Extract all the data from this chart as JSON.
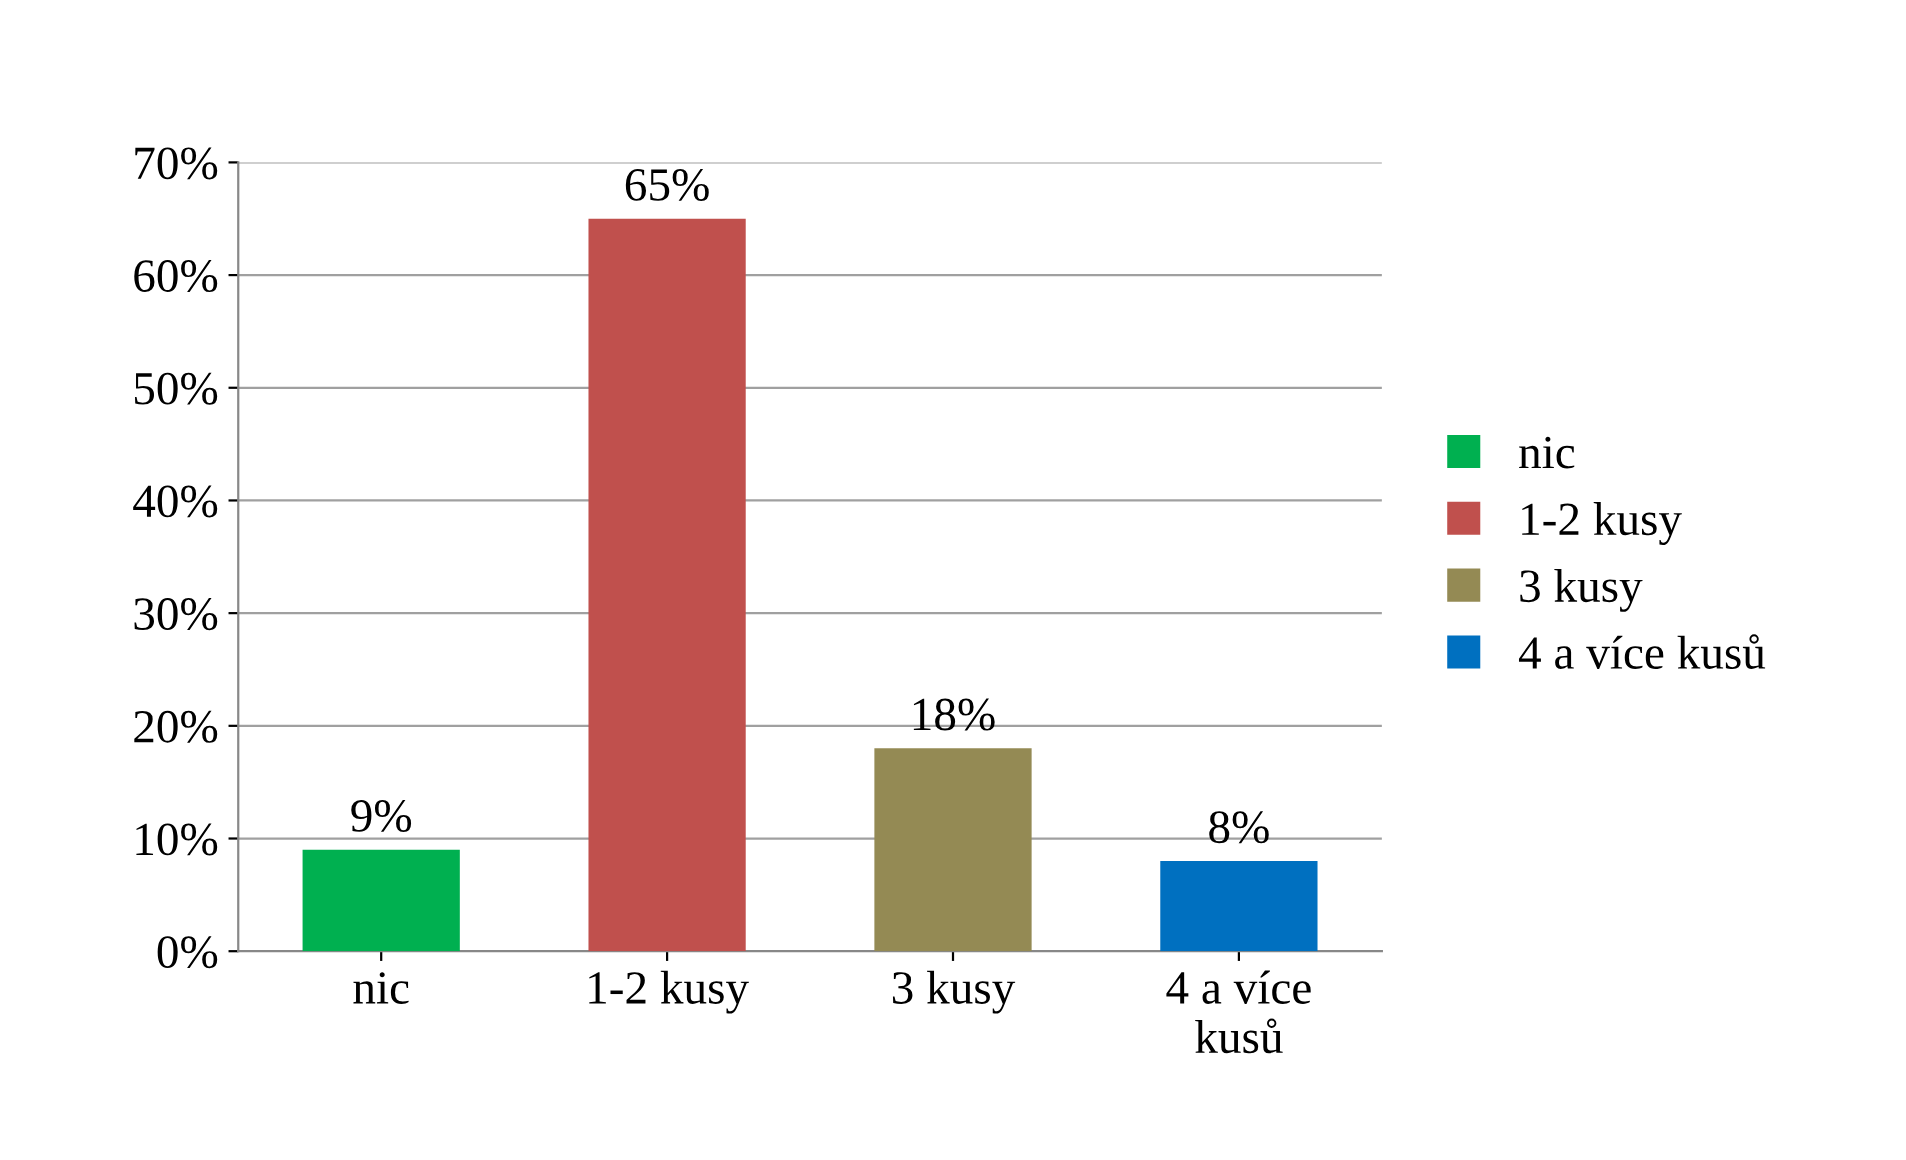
{
  "chart_data": {
    "type": "bar",
    "categories": [
      "nic",
      "1-2 kusy",
      "3 kusy",
      "4 a více\nkusů"
    ],
    "series": [
      {
        "name": "nic",
        "color": "#00b050",
        "values": [
          9,
          null,
          null,
          null
        ],
        "value_labels": [
          "9%",
          null,
          null,
          null
        ]
      },
      {
        "name": "1-2 kusy",
        "color": "#c0504d",
        "values": [
          null,
          65,
          null,
          null
        ],
        "value_labels": [
          null,
          "65%",
          null,
          null
        ]
      },
      {
        "name": "3 kusy",
        "color": "#948a54",
        "values": [
          null,
          null,
          18,
          null
        ],
        "value_labels": [
          null,
          null,
          "18%",
          null
        ]
      },
      {
        "name": "4 a více kusů",
        "color": "#0070c0",
        "values": [
          null,
          null,
          null,
          8
        ],
        "value_labels": [
          null,
          null,
          null,
          "8%"
        ]
      }
    ],
    "ylim": [
      0,
      70
    ],
    "yticks": [
      {
        "value": 0,
        "label": "0%"
      },
      {
        "value": 10,
        "label": "10%"
      },
      {
        "value": 20,
        "label": "20%"
      },
      {
        "value": 30,
        "label": "30%"
      },
      {
        "value": 40,
        "label": "40%"
      },
      {
        "value": 50,
        "label": "50%"
      },
      {
        "value": 60,
        "label": "60%"
      },
      {
        "value": 70,
        "label": "70%"
      }
    ],
    "grid": "y",
    "legend": "right"
  }
}
